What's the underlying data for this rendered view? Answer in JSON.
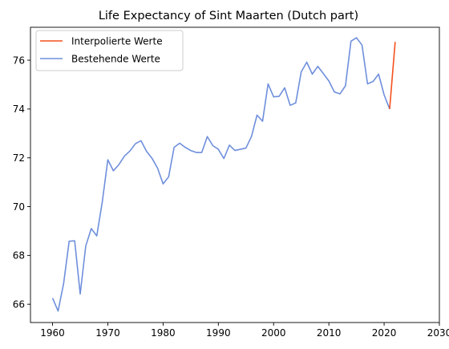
{
  "chart_data": {
    "type": "line",
    "title": "Life Expectancy of Sint Maarten (Dutch part)",
    "xlabel": "",
    "ylabel": "",
    "xlim": [
      1956,
      2030
    ],
    "ylim": [
      65.25,
      77.35
    ],
    "xticks": [
      1960,
      1970,
      1980,
      1990,
      2000,
      2010,
      2020,
      2030
    ],
    "yticks": [
      66,
      68,
      70,
      72,
      74,
      76
    ],
    "grid": false,
    "legend_position": "top-left",
    "series": [
      {
        "name": "Interpolierte Werte",
        "color": "#f4511e",
        "x": [
          2021,
          2022
        ],
        "y": [
          74.0,
          76.75
        ]
      },
      {
        "name": "Bestehende Werte",
        "color": "#6f8fdc",
        "x": [
          1960,
          1961,
          1962,
          1963,
          1964,
          1965,
          1966,
          1967,
          1968,
          1969,
          1970,
          1971,
          1972,
          1973,
          1974,
          1975,
          1976,
          1977,
          1978,
          1979,
          1980,
          1981,
          1982,
          1983,
          1984,
          1985,
          1986,
          1987,
          1988,
          1989,
          1990,
          1991,
          1992,
          1993,
          1994,
          1995,
          1996,
          1997,
          1998,
          1999,
          2000,
          2001,
          2002,
          2003,
          2004,
          2005,
          2006,
          2007,
          2008,
          2009,
          2010,
          2011,
          2012,
          2013,
          2014,
          2015,
          2016,
          2017,
          2018,
          2019,
          2020,
          2021
        ],
        "y": [
          66.25,
          65.72,
          66.85,
          68.58,
          68.6,
          66.42,
          68.38,
          69.1,
          68.8,
          70.2,
          71.92,
          71.47,
          71.72,
          72.07,
          72.28,
          72.58,
          72.7,
          72.27,
          71.98,
          71.58,
          70.93,
          71.22,
          72.43,
          72.6,
          72.43,
          72.3,
          72.22,
          72.22,
          72.87,
          72.5,
          72.35,
          71.97,
          72.52,
          72.3,
          72.35,
          72.4,
          72.88,
          73.75,
          73.5,
          75.03,
          74.5,
          74.52,
          74.87,
          74.15,
          74.25,
          75.52,
          75.92,
          75.43,
          75.75,
          75.45,
          75.15,
          74.7,
          74.62,
          74.95,
          76.78,
          76.92,
          76.62,
          75.03,
          75.13,
          75.43,
          74.58,
          74.0
        ]
      }
    ]
  }
}
